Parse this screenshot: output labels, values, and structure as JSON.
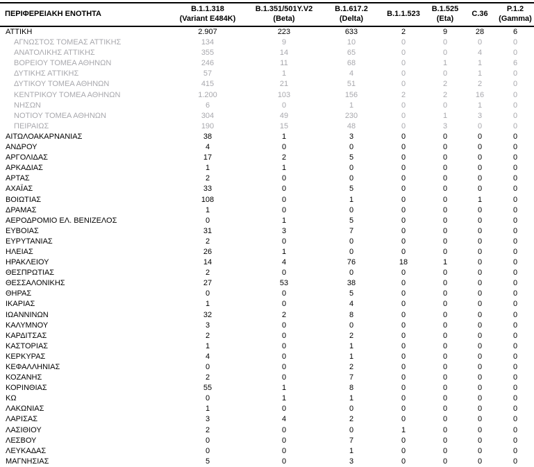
{
  "table": {
    "header": {
      "region_label": "ΠΕΡΙΦΕΡΕΙΑΚΗ ΕΝΟΤΗΤΑ",
      "columns": [
        {
          "line1": "B.1.1.318",
          "line2": "(Variant E484K)"
        },
        {
          "line1": "B.1.351/501Y.V2",
          "line2": "(Beta)"
        },
        {
          "line1": "B.1.617.2",
          "line2": "(Delta)"
        },
        {
          "line1": "B.1.1.523",
          "line2": ""
        },
        {
          "line1": "B.1.525",
          "line2": "(Eta)"
        },
        {
          "line1": "C.36",
          "line2": ""
        },
        {
          "line1": "P.1.2",
          "line2": "(Gamma)"
        }
      ]
    },
    "rows": [
      {
        "region": "ΑΤΤΙΚΗ",
        "muted": false,
        "values": [
          "2.907",
          "223",
          "633",
          "2",
          "9",
          "28",
          "6"
        ]
      },
      {
        "region": "ΑΓΝΩΣΤΟΣ ΤΟΜΕΑΣ ΑΤΤΙΚΗΣ",
        "muted": true,
        "values": [
          "134",
          "9",
          "10",
          "0",
          "0",
          "0",
          "0"
        ]
      },
      {
        "region": "ΑΝΑΤΟΛΙΚΗΣ ΑΤΤΙΚΗΣ",
        "muted": true,
        "values": [
          "355",
          "14",
          "65",
          "0",
          "0",
          "4",
          "0"
        ]
      },
      {
        "region": "ΒΟΡΕΙΟΥ ΤΟΜΕΑ ΑΘΗΝΩΝ",
        "muted": true,
        "values": [
          "246",
          "11",
          "68",
          "0",
          "1",
          "1",
          "6"
        ]
      },
      {
        "region": "ΔΥΤΙΚΗΣ ΑΤΤΙΚΗΣ",
        "muted": true,
        "values": [
          "57",
          "1",
          "4",
          "0",
          "0",
          "1",
          "0"
        ]
      },
      {
        "region": "ΔΥΤΙΚΟΥ ΤΟΜΕΑ ΑΘΗΝΩΝ",
        "muted": true,
        "values": [
          "415",
          "21",
          "51",
          "0",
          "2",
          "2",
          "0"
        ]
      },
      {
        "region": "ΚΕΝΤΡΙΚΟΥ ΤΟΜΕΑ ΑΘΗΝΩΝ",
        "muted": true,
        "values": [
          "1.200",
          "103",
          "156",
          "2",
          "2",
          "16",
          "0"
        ]
      },
      {
        "region": "ΝΗΣΩΝ",
        "muted": true,
        "values": [
          "6",
          "0",
          "1",
          "0",
          "0",
          "1",
          "0"
        ]
      },
      {
        "region": "ΝΟΤΙΟΥ ΤΟΜΕΑ ΑΘΗΝΩΝ",
        "muted": true,
        "values": [
          "304",
          "49",
          "230",
          "0",
          "1",
          "3",
          "0"
        ]
      },
      {
        "region": "ΠΕΙΡΑΙΩΣ",
        "muted": true,
        "values": [
          "190",
          "15",
          "48",
          "0",
          "3",
          "0",
          "0"
        ]
      },
      {
        "region": "ΑΙΤΩΛΟΑΚΑΡΝΑΝΙΑΣ",
        "muted": false,
        "values": [
          "38",
          "1",
          "3",
          "0",
          "0",
          "0",
          "0"
        ]
      },
      {
        "region": "ΑΝΔΡΟΥ",
        "muted": false,
        "values": [
          "4",
          "0",
          "0",
          "0",
          "0",
          "0",
          "0"
        ]
      },
      {
        "region": "ΑΡΓΟΛΙΔΑΣ",
        "muted": false,
        "values": [
          "17",
          "2",
          "5",
          "0",
          "0",
          "0",
          "0"
        ]
      },
      {
        "region": "ΑΡΚΑΔΙΑΣ",
        "muted": false,
        "values": [
          "1",
          "1",
          "0",
          "0",
          "0",
          "0",
          "0"
        ]
      },
      {
        "region": "ΑΡΤΑΣ",
        "muted": false,
        "values": [
          "2",
          "0",
          "0",
          "0",
          "0",
          "0",
          "0"
        ]
      },
      {
        "region": "ΑΧΑΪΑΣ",
        "muted": false,
        "values": [
          "33",
          "0",
          "5",
          "0",
          "0",
          "0",
          "0"
        ]
      },
      {
        "region": "ΒΟΙΩΤΙΑΣ",
        "muted": false,
        "values": [
          "108",
          "0",
          "1",
          "0",
          "0",
          "1",
          "0"
        ]
      },
      {
        "region": "ΔΡΑΜΑΣ",
        "muted": false,
        "values": [
          "1",
          "0",
          "0",
          "0",
          "0",
          "0",
          "0"
        ]
      },
      {
        "region": "ΑΕΡΟΔΡΟΜΙΟ ΕΛ. ΒΕΝΙΖΕΛΟΣ",
        "muted": false,
        "values": [
          "0",
          "1",
          "5",
          "0",
          "0",
          "0",
          "0"
        ]
      },
      {
        "region": "ΕΥΒΟΙΑΣ",
        "muted": false,
        "values": [
          "31",
          "3",
          "7",
          "0",
          "0",
          "0",
          "0"
        ]
      },
      {
        "region": "ΕΥΡΥΤΑΝΙΑΣ",
        "muted": false,
        "values": [
          "2",
          "0",
          "0",
          "0",
          "0",
          "0",
          "0"
        ]
      },
      {
        "region": "ΗΛΕΙΑΣ",
        "muted": false,
        "values": [
          "26",
          "1",
          "0",
          "0",
          "0",
          "0",
          "0"
        ]
      },
      {
        "region": "ΗΡΑΚΛΕΙΟΥ",
        "muted": false,
        "values": [
          "14",
          "4",
          "76",
          "18",
          "1",
          "0",
          "0"
        ]
      },
      {
        "region": "ΘΕΣΠΡΩΤΙΑΣ",
        "muted": false,
        "values": [
          "2",
          "0",
          "0",
          "0",
          "0",
          "0",
          "0"
        ]
      },
      {
        "region": "ΘΕΣΣΑΛΟΝΙΚΗΣ",
        "muted": false,
        "values": [
          "27",
          "53",
          "38",
          "0",
          "0",
          "0",
          "0"
        ]
      },
      {
        "region": "ΘΗΡΑΣ",
        "muted": false,
        "values": [
          "0",
          "0",
          "5",
          "0",
          "0",
          "0",
          "0"
        ]
      },
      {
        "region": "ΙΚΑΡΙΑΣ",
        "muted": false,
        "values": [
          "1",
          "0",
          "4",
          "0",
          "0",
          "0",
          "0"
        ]
      },
      {
        "region": "ΙΩΑΝΝΙΝΩΝ",
        "muted": false,
        "values": [
          "32",
          "2",
          "8",
          "0",
          "0",
          "0",
          "0"
        ]
      },
      {
        "region": "ΚΑΛΥΜΝΟΥ",
        "muted": false,
        "values": [
          "3",
          "0",
          "0",
          "0",
          "0",
          "0",
          "0"
        ]
      },
      {
        "region": "ΚΑΡΔΙΤΣΑΣ",
        "muted": false,
        "values": [
          "2",
          "0",
          "2",
          "0",
          "0",
          "0",
          "0"
        ]
      },
      {
        "region": "ΚΑΣΤΟΡΙΑΣ",
        "muted": false,
        "values": [
          "1",
          "0",
          "1",
          "0",
          "0",
          "0",
          "0"
        ]
      },
      {
        "region": "ΚΕΡΚΥΡΑΣ",
        "muted": false,
        "values": [
          "4",
          "0",
          "1",
          "0",
          "0",
          "0",
          "0"
        ]
      },
      {
        "region": "ΚΕΦΑΛΛΗΝΙΑΣ",
        "muted": false,
        "values": [
          "0",
          "0",
          "2",
          "0",
          "0",
          "0",
          "0"
        ]
      },
      {
        "region": "ΚΟΖΑΝΗΣ",
        "muted": false,
        "values": [
          "2",
          "0",
          "7",
          "0",
          "0",
          "0",
          "0"
        ]
      },
      {
        "region": "ΚΟΡΙΝΘΙΑΣ",
        "muted": false,
        "values": [
          "55",
          "1",
          "8",
          "0",
          "0",
          "0",
          "0"
        ]
      },
      {
        "region": "ΚΩ",
        "muted": false,
        "values": [
          "0",
          "1",
          "1",
          "0",
          "0",
          "0",
          "0"
        ]
      },
      {
        "region": "ΛΑΚΩΝΙΑΣ",
        "muted": false,
        "values": [
          "1",
          "0",
          "0",
          "0",
          "0",
          "0",
          "0"
        ]
      },
      {
        "region": "ΛΑΡΙΣΑΣ",
        "muted": false,
        "values": [
          "3",
          "4",
          "2",
          "0",
          "0",
          "0",
          "0"
        ]
      },
      {
        "region": "ΛΑΣΙΘΙΟΥ",
        "muted": false,
        "values": [
          "2",
          "0",
          "0",
          "1",
          "0",
          "0",
          "0"
        ]
      },
      {
        "region": "ΛΕΣΒΟΥ",
        "muted": false,
        "values": [
          "0",
          "0",
          "7",
          "0",
          "0",
          "0",
          "0"
        ]
      },
      {
        "region": "ΛΕΥΚΑΔΑΣ",
        "muted": false,
        "values": [
          "0",
          "0",
          "1",
          "0",
          "0",
          "0",
          "0"
        ]
      },
      {
        "region": "ΜΑΓΝΗΣΙΑΣ",
        "muted": false,
        "values": [
          "5",
          "0",
          "3",
          "0",
          "0",
          "0",
          "0"
        ]
      }
    ],
    "colors": {
      "text": "#000000",
      "muted_text": "#a8a8ad",
      "rule": "#000000",
      "background": "#ffffff"
    }
  }
}
